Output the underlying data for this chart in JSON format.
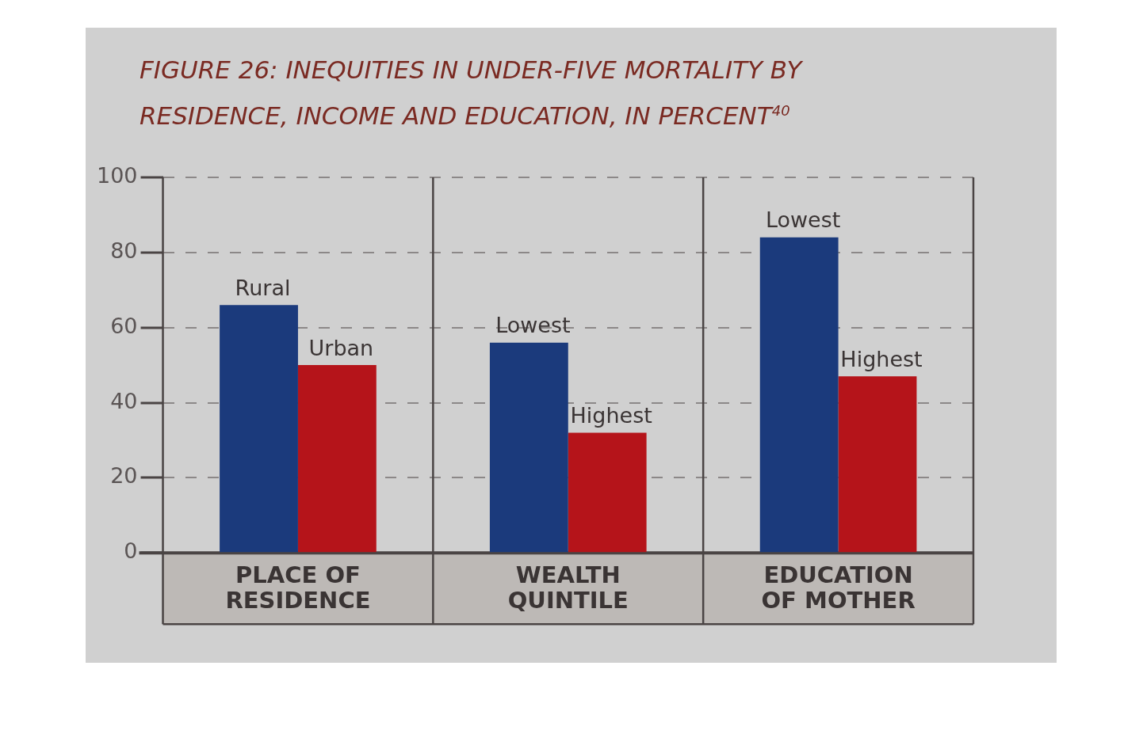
{
  "chart_data": {
    "type": "bar",
    "title": "FIGURE 26: INEQUITIES IN UNDER-FIVE MORTALITY BY RESIDENCE, INCOME AND EDUCATION, IN PERCENT$^{40}$",
    "categories": [
      "PLACE OF RESIDENCE",
      "WEALTH QUINTILE",
      "EDUCATION OF MOTHER"
    ],
    "series": [
      {
        "color": "#1b3a7c",
        "values": [
          66,
          56,
          84
        ]
      },
      {
        "color": "#b5141a",
        "values": [
          50,
          32,
          47
        ]
      }
    ],
    "annotations": [
      {
        "text": "Rural",
        "x": "PLACE OF RESIDENCE",
        "y": 66
      },
      {
        "text": "Urban",
        "x": "PLACE OF RESIDENCE",
        "y": 50
      },
      {
        "text": "Lowest",
        "x": "WEALTH QUINTILE",
        "y": 56
      },
      {
        "text": "Highest",
        "x": "WEALTH QUINTILE",
        "y": 32
      },
      {
        "text": "Lowest",
        "x": "EDUCATION OF MOTHER",
        "y": 84
      },
      {
        "text": "Highest",
        "x": "EDUCATION OF MOTHER",
        "y": 47
      }
    ],
    "ylim": [
      0,
      100
    ],
    "yticks": [
      0,
      20,
      40,
      60,
      80,
      100
    ],
    "grid": "y",
    "legend": false
  }
}
